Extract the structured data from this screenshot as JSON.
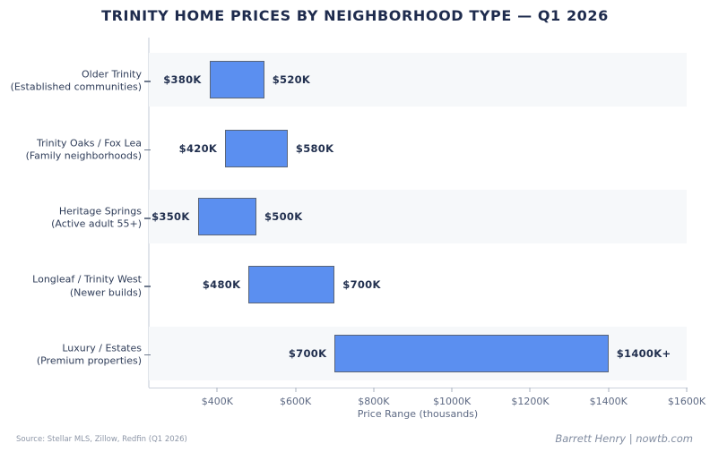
{
  "title": "TRINITY HOME PRICES BY NEIGHBORHOOD TYPE — Q1 2026",
  "footer": {
    "source": "Source: Stellar MLS, Zillow, Redfin (Q1 2026)",
    "credit": "Barrett Henry | nowtb.com"
  },
  "colors": {
    "bar_fill": "#5b8ff0",
    "bar_border": "#5a6578",
    "row_band": "#f6f8fa",
    "title_text": "#1e2b4d",
    "value_text": "#22304f",
    "axis_text": "#5e6a84",
    "category_text": "#2f3d59"
  },
  "chart_data": {
    "type": "bar",
    "variant": "horizontal-range",
    "title": "TRINITY HOME PRICES BY NEIGHBORHOOD TYPE — Q1 2026",
    "xlabel": "Price Range (thousands)",
    "xlim": [
      225,
      1600
    ],
    "grid": false,
    "legend": false,
    "categories": [
      "Older Trinity (Established communities)",
      "Trinity Oaks / Fox Lea (Family neighborhoods)",
      "Heritage Springs (Active adult 55+)",
      "Longleaf / Trinity West (Newer builds)",
      "Luxury / Estates (Premium properties)"
    ],
    "rows": [
      {
        "name": "Older Trinity",
        "sub": "(Established communities)",
        "min": 380,
        "max": 520,
        "min_label": "$380K",
        "max_label": "$520K",
        "band": true
      },
      {
        "name": "Trinity Oaks / Fox Lea",
        "sub": "(Family neighborhoods)",
        "min": 420,
        "max": 580,
        "min_label": "$420K",
        "max_label": "$580K",
        "band": false
      },
      {
        "name": "Heritage Springs",
        "sub": "(Active adult 55+)",
        "min": 350,
        "max": 500,
        "min_label": "$350K",
        "max_label": "$500K",
        "band": true
      },
      {
        "name": "Longleaf / Trinity West",
        "sub": "(Newer builds)",
        "min": 480,
        "max": 700,
        "min_label": "$480K",
        "max_label": "$700K",
        "band": false
      },
      {
        "name": "Luxury / Estates",
        "sub": "(Premium properties)",
        "min": 700,
        "max": 1400,
        "min_label": "$700K",
        "max_label": "$1400K+",
        "band": true
      }
    ],
    "x_ticks": [
      {
        "value": 400,
        "label": "$400K"
      },
      {
        "value": 600,
        "label": "$600K"
      },
      {
        "value": 800,
        "label": "$800K"
      },
      {
        "value": 1000,
        "label": "$1000K"
      },
      {
        "value": 1200,
        "label": "$1200K"
      },
      {
        "value": 1400,
        "label": "$1400K"
      },
      {
        "value": 1600,
        "label": "$1600K"
      }
    ]
  }
}
